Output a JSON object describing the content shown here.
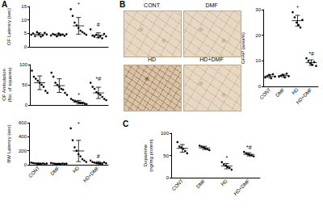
{
  "panel_labels": [
    "A",
    "B",
    "C"
  ],
  "micrographs": [
    "CONT",
    "DMF",
    "HD",
    "HD+DMF"
  ],
  "chart_data": [
    {
      "type": "scatter",
      "y_label": "OF Latency (sec)",
      "categories": [
        "CONT",
        "DMF",
        "HD",
        "HD+DMF"
      ],
      "values": [
        [
          4.5,
          5,
          4,
          5.5,
          4.8,
          3.8,
          4.2,
          5.2,
          4.6
        ],
        [
          4.2,
          4.8,
          4.5,
          3.9,
          5,
          4.4,
          4.6,
          4.1,
          4.7
        ],
        [
          14,
          11.5,
          9,
          8,
          7,
          6,
          5.5,
          5,
          4.5
        ],
        [
          6.5,
          4.2,
          3.8,
          4.5,
          3.5,
          4,
          3.2,
          4.8,
          3.9
        ]
      ],
      "mean": [
        4.7,
        4.5,
        7.8,
        4.3
      ],
      "sd": [
        0.5,
        0.35,
        3.1,
        0.9
      ],
      "annotations": [
        null,
        null,
        "*",
        "#"
      ],
      "ylim": [
        0,
        15
      ],
      "yticks": [
        0,
        5,
        10,
        15
      ],
      "tick_labels": "y",
      "grid": false,
      "color": "#000000",
      "marker": "circle"
    },
    {
      "type": "scatter",
      "y_label": "OF Ambulation\n(No. of squares)",
      "categories": [
        "CONT",
        "DMF",
        "HD",
        "HD+DMF"
      ],
      "values": [
        [
          85,
          70,
          65,
          60,
          55,
          50,
          45,
          35,
          30
        ],
        [
          80,
          70,
          55,
          50,
          45,
          40,
          38,
          30,
          25
        ],
        [
          15,
          12,
          10,
          8,
          6,
          5,
          4,
          3,
          2
        ],
        [
          55,
          45,
          40,
          32,
          28,
          25,
          20,
          15,
          12
        ]
      ],
      "mean": [
        55,
        48,
        7,
        30
      ],
      "sd": [
        17,
        17,
        4.3,
        14
      ],
      "annotations": [
        null,
        null,
        "*",
        "*#"
      ],
      "ylim": [
        0,
        100
      ],
      "yticks": [
        0,
        50,
        100
      ],
      "tick_labels": "y",
      "grid": false,
      "color": "#000000",
      "marker": "circle"
    },
    {
      "type": "scatter",
      "y_label": "BW Latency (sec)",
      "categories": [
        "CONT",
        "DMF",
        "HD",
        "HD+DMF"
      ],
      "values": [
        [
          30,
          25,
          20,
          15,
          10,
          8,
          20,
          12,
          18
        ],
        [
          25,
          20,
          15,
          10,
          12,
          8,
          18,
          14,
          16
        ],
        [
          520,
          350,
          250,
          200,
          150,
          120,
          80,
          60,
          40
        ],
        [
          60,
          40,
          30,
          25,
          20,
          15,
          10,
          35,
          22
        ]
      ],
      "mean": [
        18,
        15,
        197,
        29
      ],
      "sd": [
        7,
        5,
        152,
        15
      ],
      "annotations": [
        null,
        null,
        "*",
        "#"
      ],
      "ylim": [
        0,
        600
      ],
      "yticks": [
        0,
        200,
        400,
        600
      ],
      "tick_labels": true,
      "grid": false,
      "color": "#000000",
      "marker": "circle"
    },
    {
      "type": "scatter",
      "y_label": "GFAP (area%)",
      "categories": [
        "CONT",
        "DMF",
        "HD",
        "HD+DMF"
      ],
      "values": [
        [
          3.5,
          4,
          4.5,
          3.2,
          4.8,
          3.8
        ],
        [
          3.8,
          4.2,
          4.5,
          3.5,
          5,
          4
        ],
        [
          29,
          27,
          25,
          24,
          23,
          26
        ],
        [
          11,
          10,
          9,
          8.5,
          9.5,
          8
        ]
      ],
      "mean": [
        4,
        4.2,
        25.7,
        9.3
      ],
      "sd": [
        0.6,
        0.5,
        2.1,
        1.1
      ],
      "annotations": [
        null,
        null,
        "*",
        "*#"
      ],
      "ylim": [
        0,
        30
      ],
      "yticks": [
        0,
        10,
        20,
        30
      ],
      "tick_labels": true,
      "grid": false,
      "color": "#000000",
      "marker": "circle"
    },
    {
      "type": "scatter",
      "y_label": "Dopamine\n(ng/mg protein)",
      "categories": [
        "CONT",
        "DMF",
        "HD",
        "HD+DMF"
      ],
      "values": [
        [
          80,
          70,
          68,
          65,
          60,
          55
        ],
        [
          72,
          70,
          68,
          66,
          64,
          62
        ],
        [
          35,
          30,
          27,
          24,
          22,
          18
        ],
        [
          58,
          55,
          53,
          51,
          50,
          48
        ]
      ],
      "mean": [
        66,
        67,
        26,
        52.5
      ],
      "sd": [
        8.6,
        3.7,
        6,
        3.6
      ],
      "annotations": [
        null,
        null,
        "*",
        "*#"
      ],
      "ylim": [
        0,
        100
      ],
      "yticks": [
        0,
        50,
        100
      ],
      "tick_labels": true,
      "grid": false,
      "color": "#000000",
      "marker": "circle"
    }
  ]
}
